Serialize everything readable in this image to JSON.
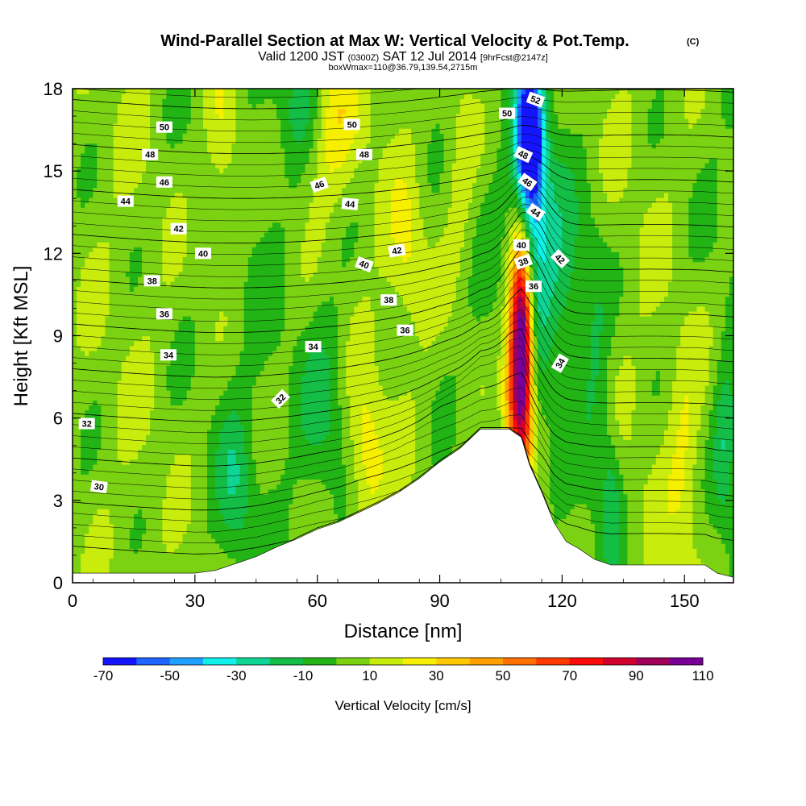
{
  "chart_data": {
    "type": "heatmap",
    "title": "Wind-Parallel Section at Max W: Vertical Velocity & Pot.Temp.",
    "title_mark": "(C)",
    "subtitle_parts": [
      "Valid 1200 JST",
      "(0300Z)",
      "SAT 12 Jul 2014",
      "[9hrFcst@2147z]"
    ],
    "subtitle2": "boxWmax=110@36.79,139.54,2715m",
    "xlabel": "Distance [nm]",
    "ylabel": "Height [Kft MSL]",
    "xlim": [
      0,
      162
    ],
    "ylim": [
      0,
      18
    ],
    "xticks": [
      "0",
      "30",
      "60",
      "90",
      "120",
      "150"
    ],
    "yticks": [
      "0",
      "3",
      "6",
      "9",
      "12",
      "15",
      "18"
    ],
    "colorbar": {
      "label": "Vertical Velocity [cm/s]",
      "ticks": [
        "-70",
        "-50",
        "-30",
        "-10",
        "10",
        "30",
        "50",
        "70",
        "90",
        "110"
      ],
      "bounds": [
        -70,
        110
      ],
      "colors": [
        "#1414ff",
        "#1e64ff",
        "#1ea0ff",
        "#10f0e8",
        "#10d494",
        "#14be46",
        "#22b414",
        "#7ad212",
        "#c8ec0c",
        "#f6f000",
        "#ffc800",
        "#ffa000",
        "#ff7000",
        "#ff3a00",
        "#ff0a0a",
        "#d2002c",
        "#a0005a",
        "#780096"
      ]
    },
    "terrain": [
      [
        0,
        0.35
      ],
      [
        5,
        0.35
      ],
      [
        10,
        0.35
      ],
      [
        15,
        0.35
      ],
      [
        20,
        0.35
      ],
      [
        25,
        0.35
      ],
      [
        30,
        0.35
      ],
      [
        35,
        0.45
      ],
      [
        40,
        0.7
      ],
      [
        45,
        0.95
      ],
      [
        50,
        1.3
      ],
      [
        55,
        1.6
      ],
      [
        60,
        1.95
      ],
      [
        65,
        2.2
      ],
      [
        70,
        2.55
      ],
      [
        75,
        2.9
      ],
      [
        80,
        3.3
      ],
      [
        85,
        3.8
      ],
      [
        90,
        4.4
      ],
      [
        95,
        4.9
      ],
      [
        100,
        5.6
      ],
      [
        103,
        5.6
      ],
      [
        107,
        5.6
      ],
      [
        110,
        5.3
      ],
      [
        112,
        4.3
      ],
      [
        115,
        3.3
      ],
      [
        118,
        2.2
      ],
      [
        121,
        1.5
      ],
      [
        124,
        1.25
      ],
      [
        128,
        0.85
      ],
      [
        132,
        0.65
      ],
      [
        136,
        0.65
      ],
      [
        140,
        0.65
      ],
      [
        145,
        0.65
      ],
      [
        150,
        0.65
      ],
      [
        155,
        0.65
      ],
      [
        158,
        0.35
      ],
      [
        162,
        0.2
      ]
    ],
    "w_features": [
      {
        "x": 110,
        "z": 7.8,
        "sx": 1.8,
        "sz": 2.8,
        "value": 105
      },
      {
        "x": 110,
        "z": 9.8,
        "sx": 2.4,
        "sz": 2.5,
        "value": 45
      },
      {
        "x": 112,
        "z": 16.2,
        "sx": 2.2,
        "sz": 1.8,
        "value": -85
      },
      {
        "x": 113,
        "z": 12.5,
        "sx": 3.5,
        "sz": 3.2,
        "value": -40
      },
      {
        "x": 121,
        "z": 11,
        "sx": 3,
        "sz": 2.5,
        "value": -18
      },
      {
        "x": 107,
        "z": 6.5,
        "sx": 1.5,
        "sz": 1.5,
        "value": 22
      },
      {
        "x": 62,
        "z": 17,
        "sx": 5,
        "sz": 2,
        "value": 25
      },
      {
        "x": 57,
        "z": 17.5,
        "sx": 4,
        "sz": 1.5,
        "value": -25
      },
      {
        "x": 37,
        "z": 16,
        "sx": 3,
        "sz": 2.5,
        "value": 18
      },
      {
        "x": 72,
        "z": 4.5,
        "sx": 3,
        "sz": 2,
        "value": 20
      },
      {
        "x": 82,
        "z": 12,
        "sx": 3,
        "sz": 2,
        "value": 15
      },
      {
        "x": 40,
        "z": 3.5,
        "sx": 3,
        "sz": 2,
        "value": -18
      },
      {
        "x": 62,
        "z": 6.5,
        "sx": 4,
        "sz": 2.5,
        "value": -16
      },
      {
        "x": 150,
        "z": 4.5,
        "sx": 3,
        "sz": 3,
        "value": 15
      },
      {
        "x": 160,
        "z": 5,
        "sx": 2,
        "sz": 2,
        "value": -22
      },
      {
        "x": 128,
        "z": 8,
        "sx": 2.5,
        "sz": 4,
        "value": -15
      },
      {
        "x": 132,
        "z": 3,
        "sx": 2,
        "sz": 2,
        "value": -20
      },
      {
        "x": 95,
        "z": 15,
        "sx": 3,
        "sz": 3,
        "value": 12
      }
    ],
    "theta_levels": [
      30,
      32,
      34,
      36,
      38,
      40,
      42,
      44,
      46,
      48,
      50,
      52
    ],
    "theta_labels": [
      {
        "x": 6.5,
        "y": 3.5,
        "text": "30",
        "rot": 8
      },
      {
        "x": 3.5,
        "y": 5.8,
        "text": "32",
        "rot": 0
      },
      {
        "x": 51,
        "y": 6.7,
        "text": "32",
        "rot": -45
      },
      {
        "x": 23.5,
        "y": 8.3,
        "text": "34",
        "rot": 0
      },
      {
        "x": 59,
        "y": 8.6,
        "text": "34",
        "rot": 0
      },
      {
        "x": 119.5,
        "y": 8,
        "text": "34",
        "rot": -60
      },
      {
        "x": 22.5,
        "y": 9.8,
        "text": "36",
        "rot": 0
      },
      {
        "x": 81.5,
        "y": 9.2,
        "text": "36",
        "rot": 0
      },
      {
        "x": 113,
        "y": 10.8,
        "text": "36",
        "rot": 0
      },
      {
        "x": 19.5,
        "y": 11,
        "text": "38",
        "rot": 0
      },
      {
        "x": 77.5,
        "y": 10.3,
        "text": "38",
        "rot": 0
      },
      {
        "x": 110.5,
        "y": 11.7,
        "text": "38",
        "rot": -20
      },
      {
        "x": 32,
        "y": 12,
        "text": "40",
        "rot": 0
      },
      {
        "x": 71.5,
        "y": 11.6,
        "text": "40",
        "rot": 20
      },
      {
        "x": 110,
        "y": 12.3,
        "text": "40",
        "rot": 0
      },
      {
        "x": 26,
        "y": 12.9,
        "text": "42",
        "rot": 0
      },
      {
        "x": 79.5,
        "y": 12.1,
        "text": "42",
        "rot": -10
      },
      {
        "x": 119.5,
        "y": 11.8,
        "text": "42",
        "rot": 45
      },
      {
        "x": 13,
        "y": 13.9,
        "text": "44",
        "rot": 0
      },
      {
        "x": 68,
        "y": 13.8,
        "text": "44",
        "rot": 5
      },
      {
        "x": 113.5,
        "y": 13.5,
        "text": "44",
        "rot": 35
      },
      {
        "x": 22.5,
        "y": 14.6,
        "text": "46",
        "rot": 0
      },
      {
        "x": 60.5,
        "y": 14.5,
        "text": "46",
        "rot": -20
      },
      {
        "x": 111.5,
        "y": 14.6,
        "text": "46",
        "rot": 35
      },
      {
        "x": 19,
        "y": 15.6,
        "text": "48",
        "rot": 0
      },
      {
        "x": 71.5,
        "y": 15.6,
        "text": "48",
        "rot": 0
      },
      {
        "x": 110.5,
        "y": 15.6,
        "text": "48",
        "rot": 25
      },
      {
        "x": 22.5,
        "y": 16.6,
        "text": "50",
        "rot": 0
      },
      {
        "x": 68.5,
        "y": 16.7,
        "text": "50",
        "rot": 0
      },
      {
        "x": 106.5,
        "y": 17.1,
        "text": "50",
        "rot": 0
      },
      {
        "x": 113.5,
        "y": 17.6,
        "text": "52",
        "rot": 20
      }
    ]
  }
}
